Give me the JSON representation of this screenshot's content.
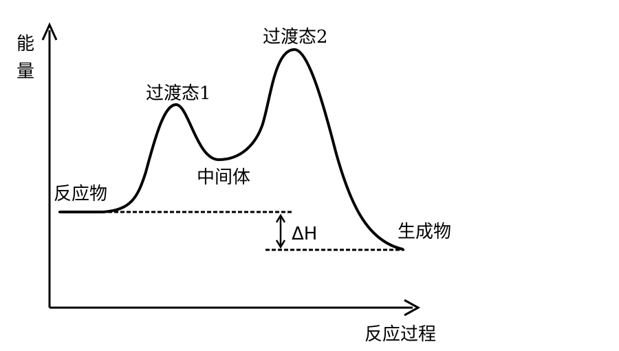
{
  "axes": {
    "y_label_char_1": "能",
    "y_label_char_2": "量",
    "x_label": "反应过程"
  },
  "labels": {
    "reactant": "反应物",
    "transition_state_1": "过渡态1",
    "transition_state_2": "过渡态2",
    "intermediate": "中间体",
    "product": "生成物",
    "enthalpy_change": "ΔH"
  }
}
